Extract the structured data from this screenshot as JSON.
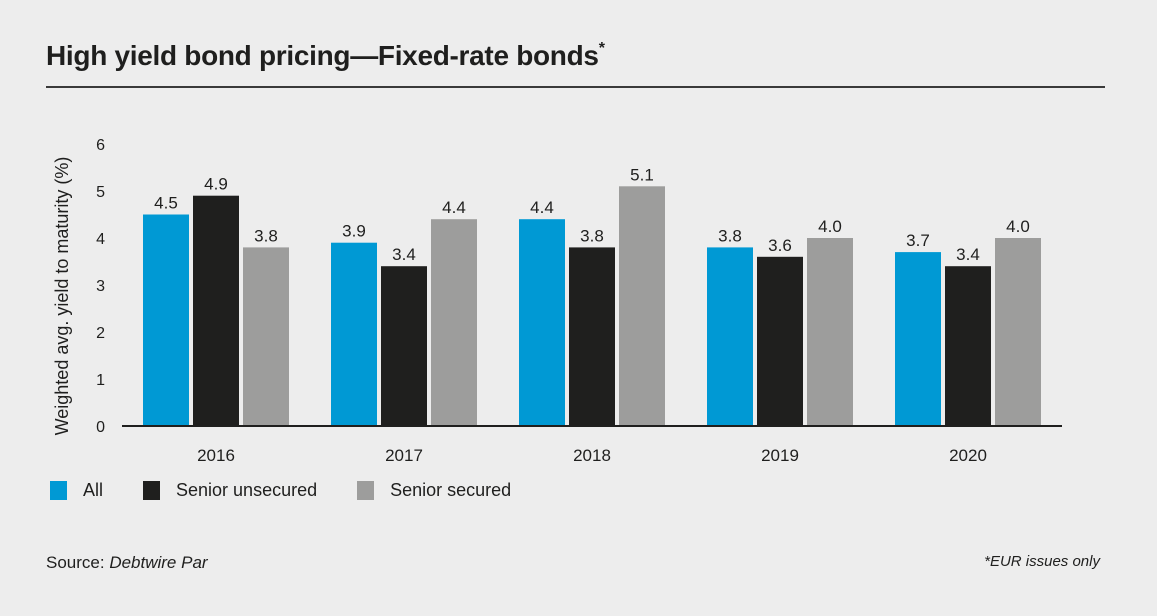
{
  "header": {
    "title": "High yield bond pricing—Fixed-rate bonds",
    "title_marker": "*"
  },
  "chart_data": {
    "type": "bar",
    "title": "High yield bond pricing—Fixed-rate bonds*",
    "xlabel": "",
    "ylabel": "Weighted avg. yield to maturity (%)",
    "ylim": [
      0,
      6
    ],
    "yticks": [
      0,
      1,
      2,
      3,
      4,
      5,
      6
    ],
    "grid": false,
    "categories": [
      "2016",
      "2017",
      "2018",
      "2019",
      "2020"
    ],
    "series": [
      {
        "name": "All",
        "color": "#0099d4",
        "values": [
          4.5,
          3.9,
          4.4,
          3.8,
          3.7
        ],
        "labels": [
          "4.5",
          "3.9",
          "4.4",
          "3.8",
          "3.7"
        ]
      },
      {
        "name": "Senior unsecured",
        "color": "#1f1f1e",
        "values": [
          4.9,
          3.4,
          3.8,
          3.6,
          3.4
        ],
        "labels": [
          "4.9",
          "3.4",
          "3.8",
          "3.6",
          "3.4"
        ]
      },
      {
        "name": "Senior secured",
        "color": "#9d9d9c",
        "values": [
          3.8,
          4.4,
          5.1,
          4.0,
          4.0
        ],
        "labels": [
          "3.8",
          "4.4",
          "5.1",
          "4.0",
          "4.0"
        ]
      }
    ],
    "legend_position": "bottom-left"
  },
  "footer": {
    "source_label": "Source: ",
    "source_name": "Debtwire Par",
    "footnote": "*EUR issues only"
  }
}
